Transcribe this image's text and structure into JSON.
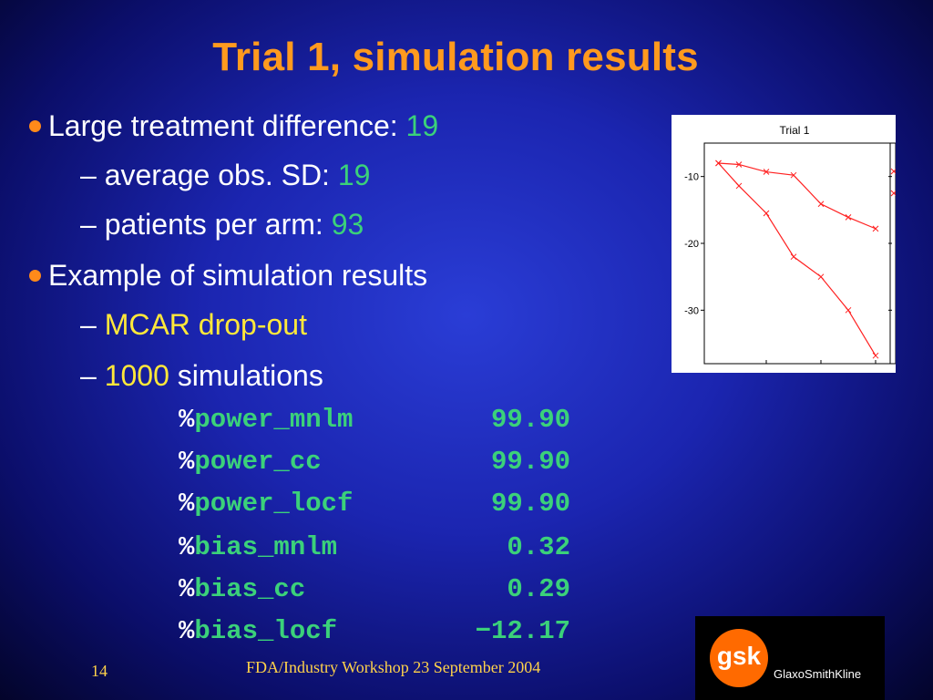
{
  "title": "Trial 1, simulation results",
  "bullets": {
    "b1_label": "Large treatment difference: ",
    "b1_value": "19",
    "s1_label": "– average obs. SD: ",
    "s1_value": "19",
    "s2_label": "– patients per arm: ",
    "s2_value": "93",
    "b2_label": "Example of simulation results",
    "s3_dash": "– ",
    "s3_text": "MCAR drop-out",
    "s4_dash": "– ",
    "s4_value": "1000",
    "s4_text": " simulations"
  },
  "stats": [
    {
      "pct": "%",
      "key": "power_mnlm",
      "value": "99.90"
    },
    {
      "pct": "%",
      "key": "power_cc",
      "value": "99.90"
    },
    {
      "pct": "%",
      "key": "power_locf",
      "value": "99.90"
    },
    {
      "pct": "%",
      "key": "bias_mnlm",
      "value": "0.32"
    },
    {
      "pct": "%",
      "key": "bias_cc",
      "value": "0.29"
    },
    {
      "pct": "%",
      "key": "bias_locf",
      "value": "−12.17"
    }
  ],
  "chart_data": {
    "type": "line",
    "title": "Trial 1",
    "xlabel": "",
    "ylabel": "",
    "ylim": [
      -38,
      -5
    ],
    "xlim": [
      0,
      12
    ],
    "yticks": [
      -10,
      -20,
      -30
    ],
    "color": "#ff2020",
    "series": [
      {
        "x": [
          0.5,
          2,
          4,
          6,
          8,
          10,
          12
        ],
        "values": [
          -8,
          -8.2,
          -9.3,
          -9.8,
          -14.1,
          -16.1,
          -17.8
        ]
      },
      {
        "x": [
          0.5,
          2,
          4,
          6,
          8,
          10,
          12
        ],
        "values": [
          -8,
          -11.4,
          -15.5,
          -22,
          -25,
          -30,
          -36.8
        ]
      }
    ]
  },
  "footer": {
    "page_number": "14",
    "text": "FDA/Industry Workshop 23 September 2004"
  },
  "logo": {
    "mark": "gsk",
    "name": "GlaxoSmithKline",
    "color": "#ff6a00"
  }
}
